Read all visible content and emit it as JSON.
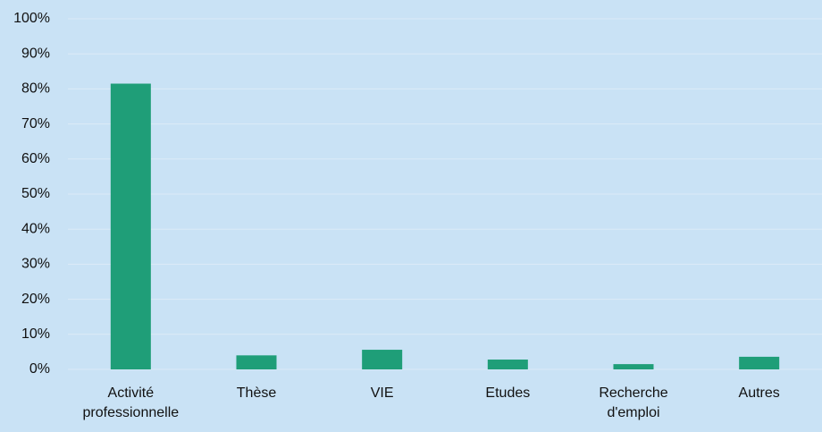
{
  "chart_data": {
    "type": "bar",
    "categories": [
      "Activité professionnelle",
      "Thèse",
      "VIE",
      "Etudes",
      "Recherche d'emploi",
      "Autres"
    ],
    "values": [
      81.5,
      4,
      5.6,
      2.8,
      1.5,
      3.6
    ],
    "color": "#1f9e78",
    "ylim": [
      0,
      100
    ],
    "yticks": [
      {
        "value": 0,
        "label": "0%"
      },
      {
        "value": 10,
        "label": "10%"
      },
      {
        "value": 20,
        "label": "20%"
      },
      {
        "value": 30,
        "label": "30%"
      },
      {
        "value": 40,
        "label": "40%"
      },
      {
        "value": 50,
        "label": "50%"
      },
      {
        "value": 60,
        "label": "60%"
      },
      {
        "value": 70,
        "label": "70%"
      },
      {
        "value": 80,
        "label": "80%"
      },
      {
        "value": 90,
        "label": "90%"
      },
      {
        "value": 100,
        "label": "100%"
      }
    ],
    "grid": true
  }
}
